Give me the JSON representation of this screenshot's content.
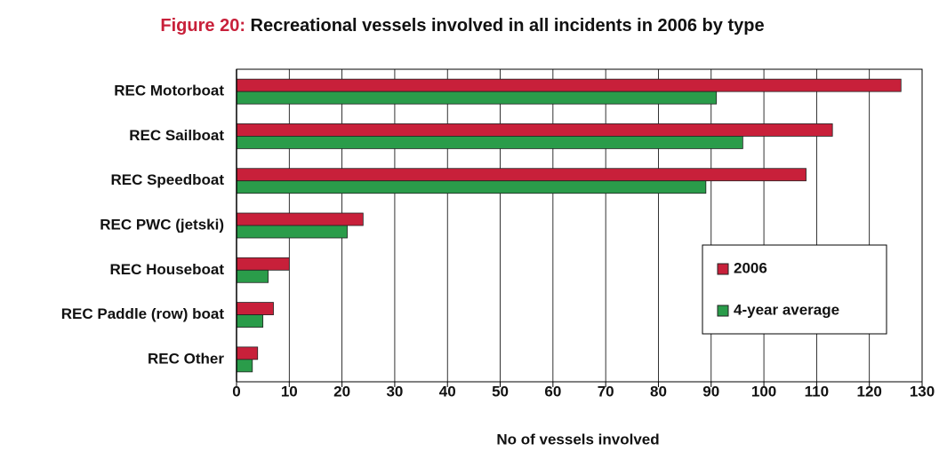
{
  "chart_data": {
    "type": "bar",
    "orientation": "horizontal",
    "figure_label": "Figure 20:",
    "title": "Recreational vessels involved in all incidents in 2006 by type",
    "x_label": "No of vessels involved",
    "categories": [
      "REC Motorboat",
      "REC Sailboat",
      "REC Speedboat",
      "REC PWC (jetski)",
      "REC Houseboat",
      "REC Paddle (row) boat",
      "REC Other"
    ],
    "series": [
      {
        "name": "2006",
        "color": "#c8203a",
        "values": [
          126,
          113,
          108,
          24,
          10,
          7,
          4
        ]
      },
      {
        "name": "4-year average",
        "color": "#2a9c4a",
        "values": [
          91,
          96,
          89,
          21,
          6,
          5,
          3
        ]
      }
    ],
    "xlim": [
      0,
      130
    ],
    "xticks": [
      0,
      10,
      20,
      30,
      40,
      50,
      60,
      70,
      80,
      90,
      100,
      110,
      120,
      130
    ],
    "grid": true,
    "legend": "right"
  }
}
